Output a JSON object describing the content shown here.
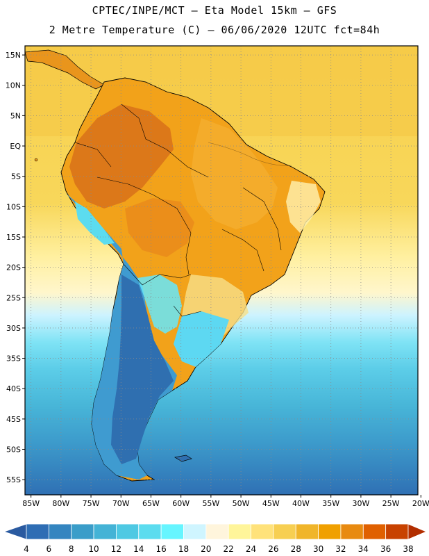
{
  "header": {
    "title_line1": "CPTEC/INPE/MCT –  Eta Model 15km – GFS",
    "title_line2": "2 Metre Temperature (C) – 06/06/2020 12UTC fct=84h"
  },
  "map": {
    "variable": "2 Metre Temperature",
    "units": "C",
    "lat_labels": [
      "15N",
      "10N",
      "5N",
      "EQ",
      "5S",
      "10S",
      "15S",
      "20S",
      "25S",
      "30S",
      "35S",
      "40S",
      "45S",
      "50S",
      "55S"
    ],
    "lon_labels": [
      "85W",
      "80W",
      "75W",
      "70W",
      "65W",
      "60W",
      "55W",
      "50W",
      "45W",
      "40W",
      "35W",
      "30W",
      "25W",
      "20W"
    ],
    "lat_values": [
      15,
      10,
      5,
      0,
      -5,
      -10,
      -15,
      -20,
      -25,
      -30,
      -35,
      -40,
      -45,
      -50,
      -55
    ],
    "lon_values": [
      -85,
      -80,
      -75,
      -70,
      -65,
      -60,
      -55,
      -50,
      -45,
      -40,
      -35,
      -30,
      -25,
      -20
    ],
    "lat_range": [
      -57.5,
      16.5
    ],
    "lon_range": [
      -86,
      -20.5
    ]
  },
  "colorbar": {
    "labels": [
      "4",
      "6",
      "8",
      "10",
      "12",
      "14",
      "16",
      "18",
      "20",
      "22",
      "24",
      "26",
      "28",
      "30",
      "32",
      "34",
      "36",
      "38"
    ],
    "colors": [
      "#2a5aa0",
      "#2e6db4",
      "#3485c0",
      "#3a9dc9",
      "#44b3d6",
      "#4ec9e3",
      "#5cdcef",
      "#66f5ff",
      "#cff5ff",
      "#fff5dc",
      "#fff59a",
      "#ffe27a",
      "#f7cf52",
      "#f0b52a",
      "#f0a000",
      "#e88a10",
      "#e06000",
      "#c84200",
      "#b22e00"
    ]
  },
  "colors": {
    "ocean_warm": "#f6c84a",
    "ocean_mild": "#fff2a8",
    "ocean_cool": "#cdf3ff",
    "land_hot": "#e07c1a",
    "land_warm": "#f2a21a",
    "land_cool_south": "#2f6fb0",
    "grid_dots": "#8a8a8a"
  }
}
